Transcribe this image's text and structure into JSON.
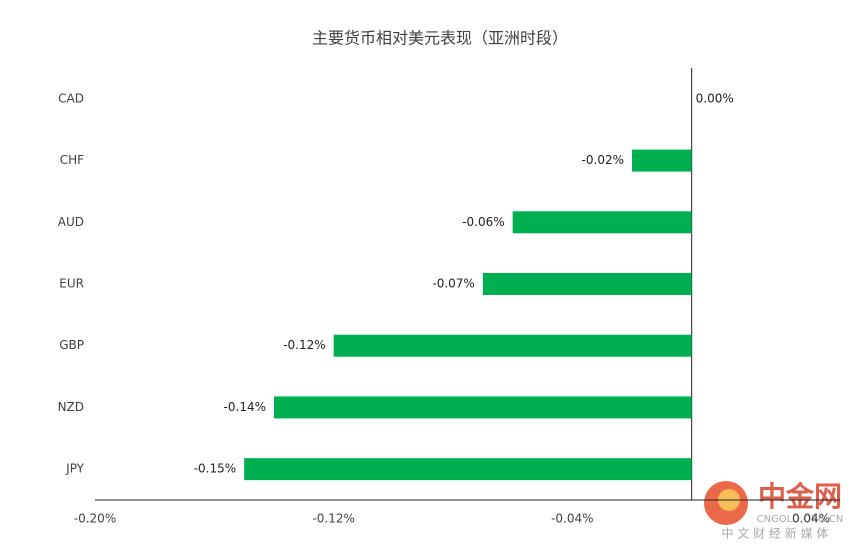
{
  "chart_data": {
    "type": "barh",
    "title": "主要货币相对美元表现（亚洲时段）",
    "categories": [
      "CAD",
      "CHF",
      "AUD",
      "EUR",
      "GBP",
      "NZD",
      "JPY"
    ],
    "values": [
      0.0,
      -0.02,
      -0.06,
      -0.07,
      -0.12,
      -0.14,
      -0.15
    ],
    "value_labels": [
      "0.00%",
      "-0.02%",
      "-0.06%",
      "-0.07%",
      "-0.12%",
      "-0.14%",
      "-0.15%"
    ],
    "color": "#00b050",
    "xlim": [
      -0.2,
      0.04
    ],
    "xticks": [
      {
        "value": -0.2,
        "label": "-0.20%"
      },
      {
        "value": -0.12,
        "label": "-0.12%"
      },
      {
        "value": -0.04,
        "label": "-0.04%"
      },
      {
        "value": 0.04,
        "label": "0.04%"
      }
    ],
    "grid": false
  },
  "watermark": {
    "brand": "中金网",
    "url": "CNGOLD.ORG.CN",
    "tagline": "中 文 财 经 新 媒 体"
  }
}
